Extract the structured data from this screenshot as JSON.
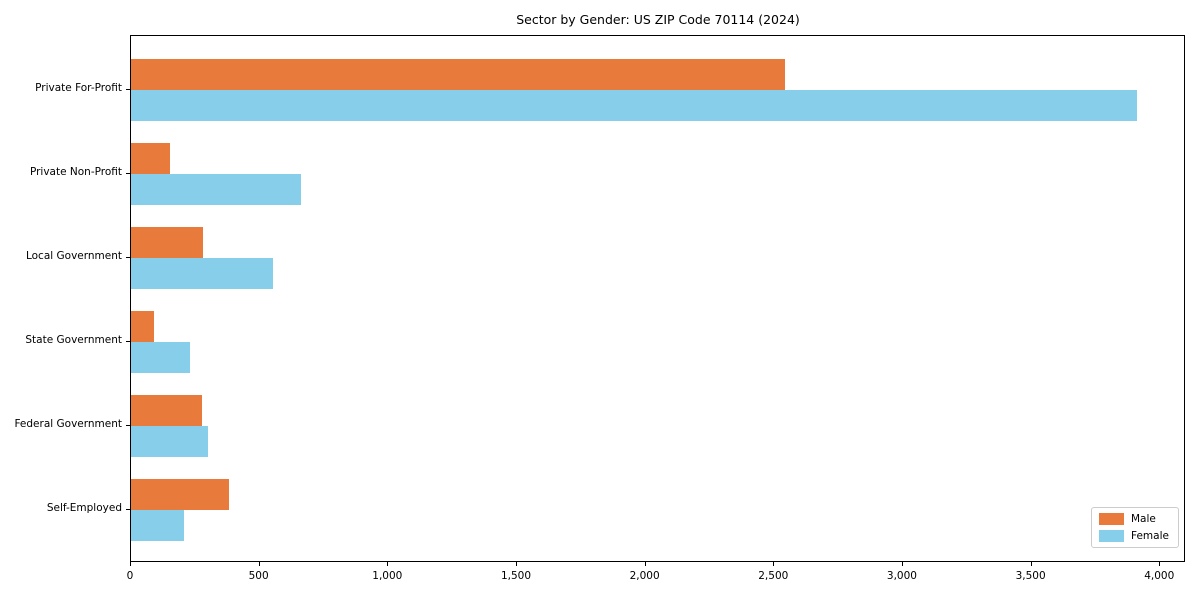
{
  "chart_data": {
    "type": "bar",
    "orientation": "horizontal",
    "title": "Sector by Gender: US ZIP Code 70114 (2024)",
    "categories": [
      "Private For-Profit",
      "Private Non-Profit",
      "Local Government",
      "State Government",
      "Federal Government",
      "Self-Employed"
    ],
    "series": [
      {
        "name": "Male",
        "color": "#e87a3c",
        "values": [
          2540,
          150,
          280,
          90,
          275,
          380
        ]
      },
      {
        "name": "Female",
        "color": "#87ceeb",
        "values": [
          3910,
          660,
          550,
          230,
          300,
          205
        ]
      }
    ],
    "xlabel": "",
    "ylabel": "",
    "xlim": [
      0,
      4100
    ],
    "xticks": [
      0,
      500,
      1000,
      1500,
      2000,
      2500,
      3000,
      3500,
      4000
    ],
    "grid": false,
    "legend_position": "lower right",
    "background_color": "#ffffff",
    "spine_color": "#000000"
  }
}
